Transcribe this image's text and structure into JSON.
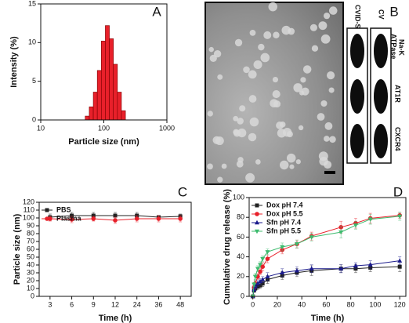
{
  "chart_data": [
    {
      "type": "histogram",
      "label": "A",
      "xlabel": "Particle size (nm)",
      "ylabel": "Intensity (%)",
      "xscale": "log",
      "xlim": [
        10,
        1000
      ],
      "xticks": [
        10,
        100,
        1000
      ],
      "ylim": [
        0,
        15
      ],
      "yticks": [
        0,
        5,
        10,
        15
      ],
      "color": "#e8202a",
      "bins": [
        50.7,
        58.8,
        68.1,
        78.8,
        91.3,
        105.7,
        122.4,
        141.8,
        164.2,
        190.1,
        220.2
      ],
      "values": [
        0.5,
        1.7,
        3.6,
        6.4,
        10.2,
        12.2,
        10.5,
        7.2,
        3.6,
        1.2
      ]
    },
    {
      "type": "line",
      "label": "C",
      "xlabel": "Time (h)",
      "ylabel": "Particle size (nm)",
      "categories": [
        3,
        6,
        9,
        12,
        24,
        36,
        48
      ],
      "ylim": [
        0,
        120
      ],
      "yticks": [
        0,
        10,
        20,
        30,
        40,
        50,
        60,
        70,
        80,
        90,
        100,
        110,
        120
      ],
      "legend": "top-left",
      "series": [
        {
          "name": "PBS",
          "color": "#222222",
          "marker": "square",
          "values": [
            101,
            103,
            103,
            103,
            103,
            101,
            102
          ],
          "errors": [
            4,
            4,
            4,
            4,
            4,
            2,
            3
          ]
        },
        {
          "name": "Plasma",
          "color": "#e8202a",
          "marker": "circle",
          "values": [
            99,
            98,
            99,
            97,
            99,
            99,
            99
          ],
          "errors": [
            3,
            4,
            3,
            4,
            4,
            4,
            4
          ]
        }
      ]
    },
    {
      "type": "line",
      "label": "D",
      "xlabel": "Time (h)",
      "ylabel": "Cumulative drug release (%)",
      "x": [
        0,
        1,
        2,
        4,
        6,
        8,
        12,
        24,
        36,
        48,
        72,
        84,
        96,
        120
      ],
      "xlim": [
        -3,
        125
      ],
      "xticks": [
        0,
        20,
        40,
        60,
        80,
        100,
        120
      ],
      "ylim": [
        0,
        100
      ],
      "yticks": [
        0,
        20,
        40,
        60,
        80,
        100
      ],
      "legend": "top-left",
      "series": [
        {
          "name": "Dox pH 7.4",
          "color": "#222222",
          "marker": "square",
          "values": [
            0,
            6,
            8,
            10,
            11,
            13,
            17,
            21,
            24,
            26,
            28,
            28,
            29,
            30
          ],
          "errors": [
            0,
            2,
            2,
            3,
            3,
            3,
            4,
            4,
            4,
            5,
            4,
            4,
            4,
            5
          ]
        },
        {
          "name": "Dox pH 5.5",
          "color": "#e8202a",
          "marker": "circle",
          "values": [
            0,
            9,
            13,
            20,
            25,
            30,
            38,
            47,
            53,
            61,
            70,
            74,
            79,
            82
          ],
          "errors": [
            0,
            2,
            3,
            3,
            3,
            4,
            4,
            4,
            4,
            4,
            6,
            5,
            5,
            3
          ]
        },
        {
          "name": "Sfn pH 7.4",
          "color": "#1a1a8c",
          "marker": "triangle",
          "values": [
            0,
            7,
            10,
            13,
            15,
            17,
            20,
            24,
            26,
            28,
            28,
            31,
            32,
            36
          ],
          "errors": [
            0,
            2,
            2,
            3,
            3,
            3,
            4,
            4,
            4,
            4,
            4,
            3,
            4,
            4
          ]
        },
        {
          "name": "Sfn pH 5.5",
          "color": "#3dbb6e",
          "marker": "triangle-down",
          "values": [
            0,
            12,
            20,
            28,
            32,
            38,
            45,
            50,
            53,
            60,
            65,
            72,
            78,
            81
          ],
          "errors": [
            0,
            2,
            3,
            3,
            3,
            3,
            3,
            4,
            4,
            4,
            6,
            4,
            5,
            4
          ]
        }
      ]
    }
  ],
  "panel_b": {
    "label": "B",
    "lanes": [
      "CVID-S",
      "CV"
    ],
    "rows": [
      [
        "Na-K",
        "ATPase"
      ],
      [
        "AT1R"
      ],
      [
        "CXCR4"
      ]
    ]
  }
}
